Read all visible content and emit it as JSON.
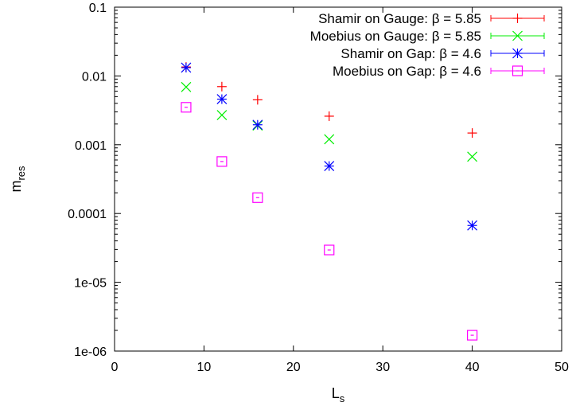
{
  "chart_data": {
    "type": "scatter",
    "title": "",
    "xlabel": "L",
    "xlabel_sub": "s",
    "ylabel": "m",
    "ylabel_sub": "res",
    "xlim": [
      0,
      50
    ],
    "ylim": [
      1e-06,
      0.1
    ],
    "yscale": "log",
    "grid": false,
    "legend_position": "top-right",
    "x_ticks": [
      0,
      10,
      20,
      30,
      40,
      50
    ],
    "x_tick_labels": [
      "0",
      "10",
      "20",
      "30",
      "40",
      "50"
    ],
    "y_ticks": [
      1e-06,
      1e-05,
      0.0001,
      0.001,
      0.01,
      0.1
    ],
    "y_tick_labels": [
      "1e-06",
      "1e-05",
      "0.0001",
      "0.001",
      "0.01",
      "0.1"
    ],
    "series": [
      {
        "name": "Shamir on Gauge: β = 5.85",
        "color": "#ff0000",
        "marker": "plus",
        "x": [
          8,
          12,
          16,
          24,
          40
        ],
        "y": [
          0.0135,
          0.007,
          0.0045,
          0.0026,
          0.00148
        ]
      },
      {
        "name": "Moebius on Gauge: β = 5.85",
        "color": "#00ee00",
        "marker": "cross",
        "x": [
          8,
          12,
          16,
          24,
          40
        ],
        "y": [
          0.0069,
          0.0027,
          0.0019,
          0.0012,
          0.00067
        ]
      },
      {
        "name": "Shamir on Gap:  β = 4.6",
        "color": "#0000ff",
        "marker": "star",
        "x": [
          8,
          12,
          16,
          24,
          40
        ],
        "y": [
          0.0132,
          0.0046,
          0.00195,
          0.00049,
          6.7e-05
        ]
      },
      {
        "name": "Moebius on Gap: β = 4.6",
        "color": "#ff00ff",
        "marker": "box",
        "x": [
          8,
          12,
          16,
          24,
          40
        ],
        "y": [
          0.0035,
          0.00057,
          0.00017,
          2.95e-05,
          1.7e-06
        ]
      }
    ]
  }
}
